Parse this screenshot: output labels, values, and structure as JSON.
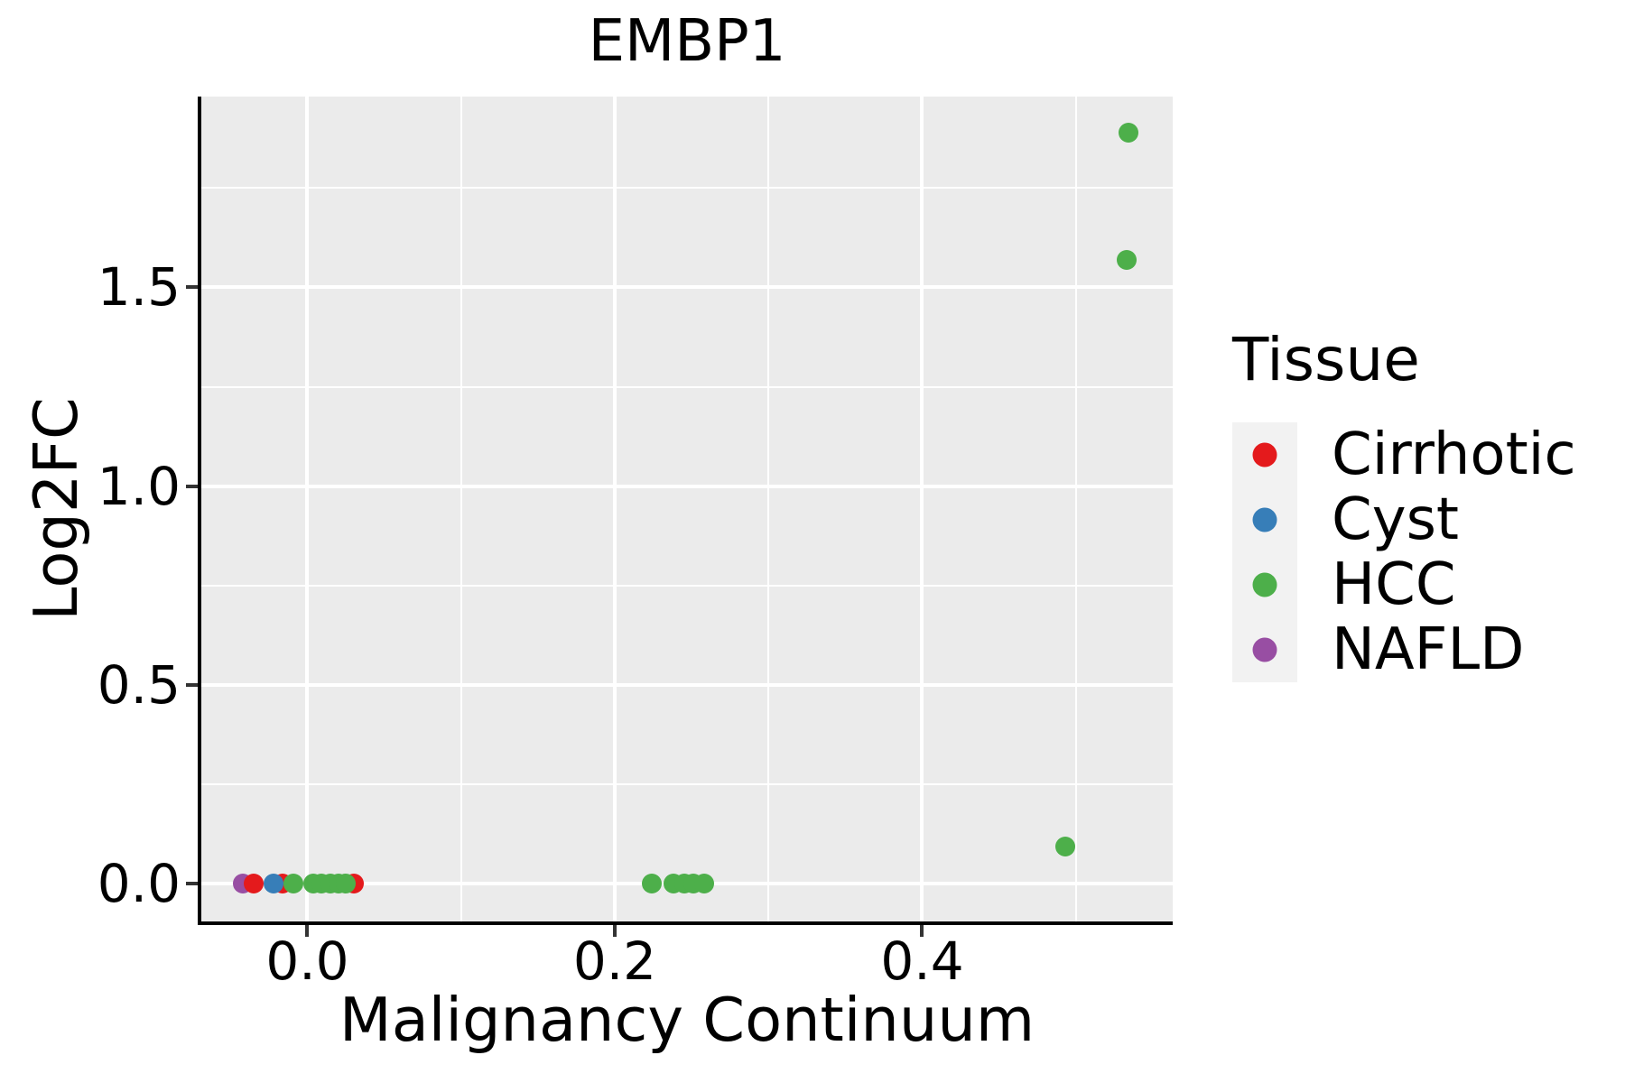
{
  "title": "EMBP1",
  "panel_style": {
    "background": "#EBEBEB",
    "gridline_color": "#FFFFFF",
    "axis_line_color": "#000000",
    "tick_color": "#333333",
    "text_color": "#000000"
  },
  "x_axis": {
    "label": "Malignancy Continuum",
    "tick_labels": [
      "0.0",
      "0.2",
      "0.4"
    ]
  },
  "y_axis": {
    "label": "Log2FC",
    "tick_labels": [
      "0.0",
      "0.5",
      "1.0",
      "1.5"
    ]
  },
  "legend": {
    "title": "Tissue",
    "key_background": "#F2F2F2",
    "entries": [
      {
        "label": "Cirrhotic",
        "color": "#E41A1C"
      },
      {
        "label": "Cyst",
        "color": "#377EB8"
      },
      {
        "label": "HCC",
        "color": "#4DAF4A"
      },
      {
        "label": "NAFLD",
        "color": "#984EA3"
      }
    ]
  },
  "chart_data": {
    "type": "scatter",
    "title": "EMBP1",
    "xlabel": "Malignancy Continuum",
    "ylabel": "Log2FC",
    "xlim": [
      -0.069,
      0.563
    ],
    "ylim": [
      -0.095,
      1.98
    ],
    "x_ticks": [
      0,
      0.2,
      0.4
    ],
    "y_ticks": [
      0,
      0.5,
      1,
      1.5
    ],
    "grid": true,
    "legend_position": "right",
    "point_radius_px": 11,
    "draw_order": [
      "NAFLD",
      "Cirrhotic",
      "Cyst",
      "HCC"
    ],
    "series": [
      {
        "name": "Cirrhotic",
        "color": "#E41A1C",
        "points": [
          [
            -0.035,
            0.0
          ],
          [
            -0.016,
            0.0
          ],
          [
            0.03,
            0.0
          ]
        ]
      },
      {
        "name": "Cyst",
        "color": "#377EB8",
        "points": [
          [
            -0.022,
            0.0
          ]
        ]
      },
      {
        "name": "HCC",
        "color": "#4DAF4A",
        "points": [
          [
            -0.009,
            0.0
          ],
          [
            0.004,
            0.0
          ],
          [
            0.009,
            0.0
          ],
          [
            0.015,
            0.0
          ],
          [
            0.02,
            0.0
          ],
          [
            0.025,
            0.0
          ],
          [
            0.224,
            0.0
          ],
          [
            0.238,
            0.0
          ],
          [
            0.245,
            0.0
          ],
          [
            0.251,
            0.0
          ],
          [
            0.258,
            0.0
          ],
          [
            0.493,
            0.093
          ],
          [
            0.533,
            1.57
          ],
          [
            0.534,
            1.89
          ]
        ]
      },
      {
        "name": "NAFLD",
        "color": "#984EA3",
        "points": [
          [
            -0.042,
            0.0
          ]
        ]
      }
    ]
  }
}
